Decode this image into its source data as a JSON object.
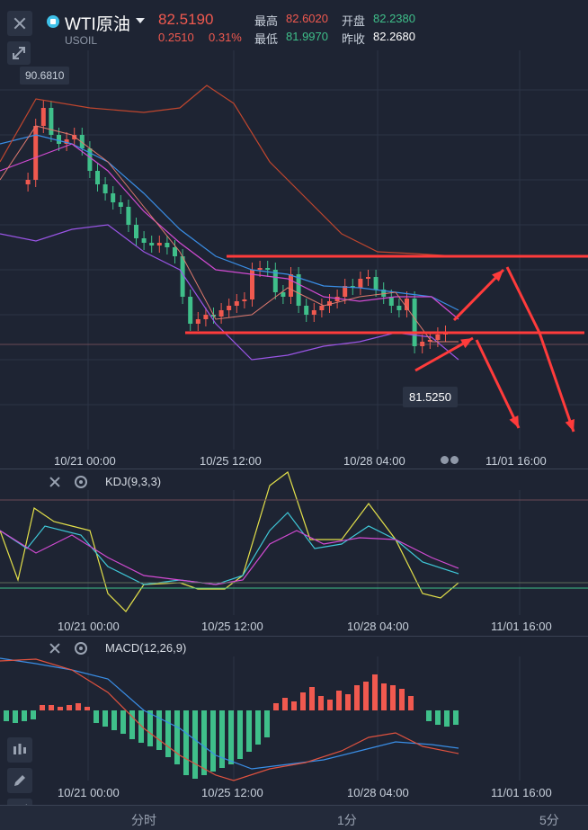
{
  "header": {
    "symbol_name": "WTI原油",
    "symbol_code": "USOIL",
    "price": "82.5190",
    "change": "0.2510",
    "change_pct": "0.31%",
    "stats": {
      "high_label": "最高",
      "high_value": "82.6020",
      "open_label": "开盘",
      "open_value": "82.2380",
      "low_label": "最低",
      "low_value": "81.9970",
      "prev_close_label": "昨收",
      "prev_close_value": "82.2680"
    }
  },
  "main_chart": {
    "y_label_top": "90.6810",
    "low_marker": "81.5250",
    "x_ticks": [
      "10/21 00:00",
      "10/25 12:00",
      "10/28 04:00",
      "11/01 16:00"
    ]
  },
  "kdj_panel": {
    "title": "KDJ(9,3,3)",
    "x_ticks": [
      "10/21 00:00",
      "10/25 12:00",
      "10/28 04:00",
      "11/01 16:00"
    ]
  },
  "macd_panel": {
    "title": "MACD(12,26,9)",
    "x_ticks": [
      "10/21 00:00",
      "10/25 12:00",
      "10/28 04:00",
      "11/01 16:00"
    ]
  },
  "footer": {
    "tabs": [
      "分时",
      "1分",
      "5分"
    ]
  },
  "colors": {
    "up": "#f0594f",
    "down": "#3fbf8a",
    "accent": "#3ec0e8",
    "annotation": "#ff3b3b"
  },
  "icons": {
    "close": "close-icon",
    "expand": "expand-icon",
    "symbol": "symbol-icon",
    "settings": "gear-icon",
    "candles": "candlestick-icon",
    "pencil": "pencil-icon",
    "indicator": "indicator-icon"
  }
}
